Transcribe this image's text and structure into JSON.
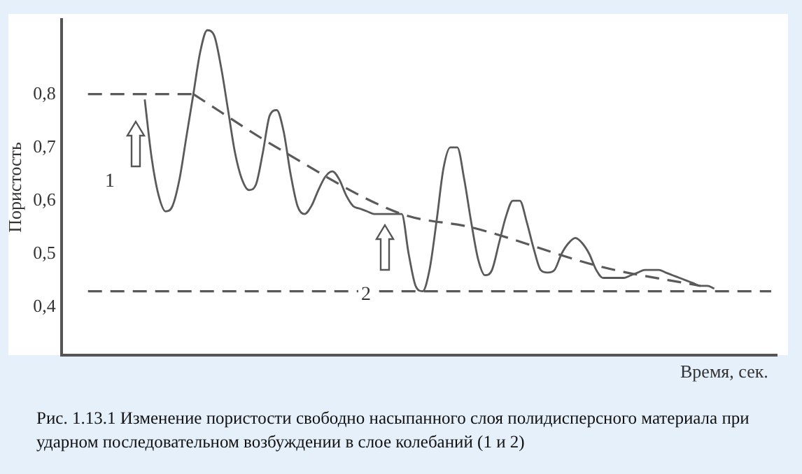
{
  "chart_data": {
    "type": "line",
    "ylabel": "Пористость",
    "xlabel": "Время, сек.",
    "categories": [
      null,
      null,
      null,
      null,
      null,
      null,
      null,
      null,
      null,
      null,
      null,
      null,
      null,
      null,
      null,
      null,
      null,
      null,
      null,
      null,
      null,
      null,
      null,
      null,
      null,
      null,
      null,
      null,
      null,
      null,
      null,
      null,
      null,
      null,
      null,
      null,
      null,
      null,
      null,
      null,
      null,
      null,
      null,
      null,
      null,
      null,
      null,
      null,
      null,
      null,
      null,
      null,
      null,
      null,
      null,
      null,
      null,
      null,
      null,
      null,
      null,
      null,
      null,
      null,
      null,
      null,
      null,
      null,
      null,
      null,
      null,
      null,
      null,
      null,
      null,
      null,
      null,
      null,
      null,
      null,
      null,
      null,
      null
    ],
    "series": [
      {
        "color": "#5a5a5a",
        "line_style": "solid",
        "values": [
          0.79,
          0.68,
          0.61,
          0.58,
          0.59,
          0.64,
          0.72,
          0.8,
          0.88,
          0.92,
          0.91,
          0.85,
          0.77,
          0.69,
          0.64,
          0.62,
          0.63,
          0.69,
          0.76,
          0.77,
          0.73,
          0.65,
          0.59,
          0.575,
          0.59,
          0.62,
          0.645,
          0.655,
          0.64,
          0.61,
          0.59,
          0.585,
          0.58,
          0.575,
          0.575,
          0.575,
          0.575,
          0.575,
          0.5,
          0.44,
          0.43,
          0.47,
          0.56,
          0.66,
          0.7,
          0.7,
          0.64,
          0.56,
          0.49,
          0.46,
          0.47,
          0.52,
          0.57,
          0.6,
          0.6,
          0.56,
          0.51,
          0.47,
          0.465,
          0.47,
          0.5,
          0.52,
          0.53,
          0.52,
          0.5,
          0.47,
          0.455,
          0.455,
          0.455,
          0.455,
          0.46,
          0.465,
          0.47,
          0.47,
          0.47,
          0.465,
          0.46,
          0.455,
          0.45,
          0.445,
          0.44,
          0.44,
          0.435
        ]
      },
      {
        "color": "#5a5a5a",
        "line_style": "dashed",
        "values": [
          null,
          null,
          null,
          null,
          null,
          null,
          null,
          0.8,
          null,
          null,
          null,
          null,
          null,
          null,
          null,
          null,
          null,
          null,
          null,
          0.7,
          null,
          null,
          null,
          null,
          null,
          null,
          null,
          null,
          null,
          null,
          null,
          null,
          null,
          null,
          null,
          null,
          null,
          0.575,
          null,
          null,
          null,
          null,
          null,
          null,
          null,
          null,
          null,
          0.55,
          null,
          null,
          null,
          null,
          null,
          null,
          null,
          null,
          null,
          null,
          null,
          null,
          null,
          null,
          null,
          null,
          null,
          null,
          0.475,
          null,
          null,
          null,
          null,
          null,
          null,
          null,
          null,
          null,
          null,
          null,
          null,
          null,
          0.44,
          null,
          null
        ]
      }
    ],
    "ref_lines": [
      {
        "axis": "y",
        "value": 0.8,
        "color": "#5a5a5a",
        "line_style": "dashed"
      },
      {
        "axis": "y",
        "value": 0.43,
        "color": "#5a5a5a",
        "line_style": "dashed"
      }
    ],
    "ylim": [
      0.31,
      0.94
    ],
    "yticks": [
      {
        "value": 0.4,
        "label": "0,4"
      },
      {
        "value": 0.5,
        "label": "0,5"
      },
      {
        "value": 0.6,
        "label": "0,6"
      },
      {
        "value": 0.7,
        "label": "0,7"
      },
      {
        "value": 0.8,
        "label": "0,8"
      }
    ],
    "tick_labels": "y",
    "grid": false,
    "legend": false,
    "marker": "none",
    "annotations": [
      "1",
      "2",
      "Рис. 1.13.1 Изменение пористости свободно насыпанного слоя  полидисперсного материала при ударном последовательном возбуждении в слое колебаний  (1 и 2)"
    ]
  }
}
